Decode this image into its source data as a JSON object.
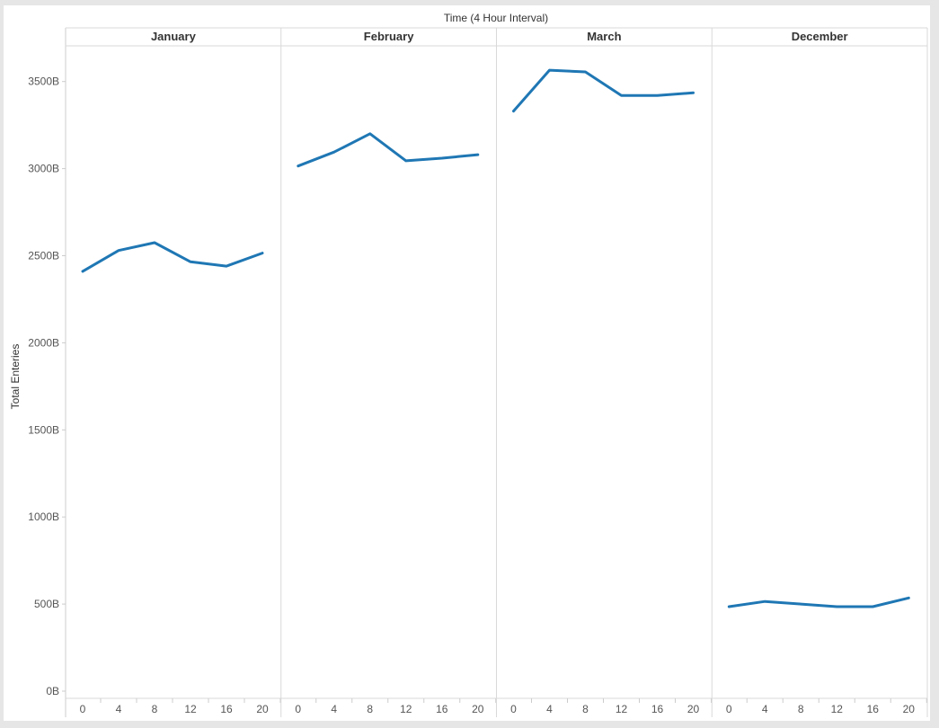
{
  "chart_data": {
    "type": "line",
    "title": "Time (4 Hour Interval)",
    "ylabel": "Total Enteries",
    "xlabel": "",
    "ylim": [
      0,
      3750
    ],
    "y_ticks": [
      0,
      500,
      1000,
      1500,
      2000,
      2500,
      3000,
      3500
    ],
    "y_tick_labels": [
      "0B",
      "500B",
      "1000B",
      "1500B",
      "2000B",
      "2500B",
      "3000B",
      "3500B"
    ],
    "x": [
      0,
      4,
      8,
      12,
      16,
      20
    ],
    "x_tick_labels": [
      "0",
      "4",
      "8",
      "12",
      "16",
      "20"
    ],
    "grid": false,
    "line_color": "#1f77b4",
    "panels": [
      {
        "name": "January",
        "values": [
          2410,
          2530,
          2575,
          2465,
          2440,
          2515
        ]
      },
      {
        "name": "February",
        "values": [
          3015,
          3095,
          3200,
          3045,
          3060,
          3080
        ]
      },
      {
        "name": "March",
        "values": [
          3330,
          3565,
          3555,
          3420,
          3420,
          3435
        ]
      },
      {
        "name": "December",
        "values": [
          485,
          515,
          500,
          485,
          485,
          535
        ]
      }
    ]
  }
}
